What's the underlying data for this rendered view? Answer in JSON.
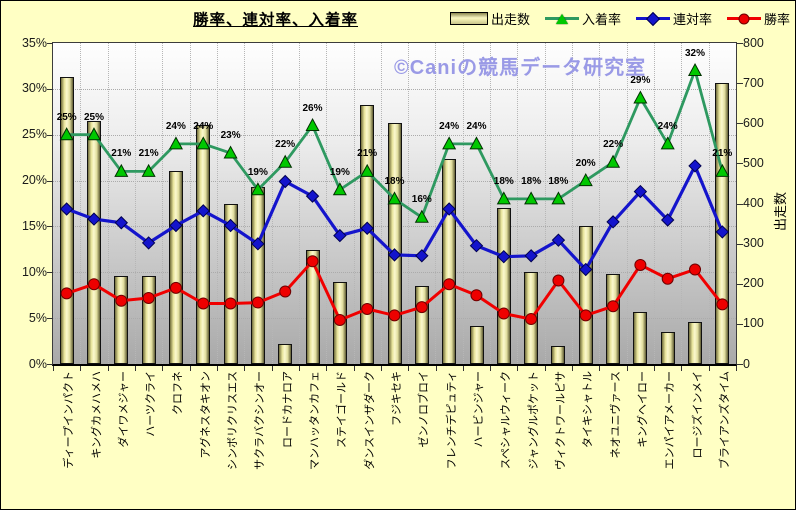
{
  "title": "勝率、連対率、入着率",
  "watermark": "©Caniの競馬データ研究室",
  "legend": [
    {
      "label": "出走数",
      "type": "bar",
      "color": "#F2EFA8"
    },
    {
      "label": "入着率",
      "type": "triangle",
      "color": "#00C800"
    },
    {
      "label": "連対率",
      "type": "diamond",
      "color": "#1414CC"
    },
    {
      "label": "勝率",
      "type": "circle",
      "color": "#EE0000"
    }
  ],
  "chart_data": {
    "type": "bar",
    "subtype": "combo-bar-and-lines",
    "title": "勝率、連対率、入着率",
    "grid": true,
    "legend_position": "top-right",
    "categories": [
      "ディープインパクト",
      "キングカメハメハ",
      "ダイワメジャー",
      "ハーツクライ",
      "クロフネ",
      "アグネスタキオン",
      "シンボリクリスエス",
      "サクラバクシンオー",
      "ロードカナロア",
      "マンハッタンカフェ",
      "ステイゴールド",
      "ダンスインザダーク",
      "フジキセキ",
      "ゼンノロブロイ",
      "フレンチデピュティ",
      "ハービンジャー",
      "スペシャルウィーク",
      "ジャングルポケット",
      "ヴィクトワールピサ",
      "タイキシャトル",
      "ネオユニヴァース",
      "キングヘイロー",
      "エンパイアメーカー",
      "ロージズインメイ",
      "ブライアンズタイム"
    ],
    "series": [
      {
        "name": "出走数",
        "type": "bar",
        "axis": "right",
        "values": [
          715,
          605,
          220,
          220,
          480,
          595,
          400,
          440,
          50,
          285,
          205,
          645,
          600,
          195,
          510,
          95,
          390,
          230,
          45,
          345,
          225,
          130,
          80,
          105,
          700
        ]
      },
      {
        "name": "入着率",
        "type": "line",
        "marker": "triangle",
        "axis": "left",
        "line_color": "#2E9960",
        "marker_color": "#00C800",
        "labels_shown": true,
        "values": [
          25,
          25,
          21,
          21,
          24,
          24,
          23,
          19,
          22,
          26,
          19,
          21,
          18,
          16,
          24,
          24,
          18,
          18,
          18,
          20,
          22,
          29,
          24,
          32,
          21
        ],
        "value_labels": [
          "25%",
          "25%",
          "21%",
          "21%",
          "24%",
          "24%",
          "23%",
          "19%",
          "22%",
          "26%",
          "19%",
          "21%",
          "18%",
          "16%",
          "24%",
          "24%",
          "18%",
          "18%",
          "18%",
          "20%",
          "22%",
          "29%",
          "24%",
          "32%",
          "21%"
        ]
      },
      {
        "name": "連対率",
        "type": "line",
        "marker": "diamond",
        "axis": "left",
        "line_color": "#1414CC",
        "marker_color": "#1414CC",
        "labels_shown": false,
        "values": [
          16.9,
          15.8,
          15.4,
          13.2,
          15.1,
          16.7,
          15.1,
          13.1,
          19.9,
          18.3,
          14.0,
          14.8,
          11.9,
          11.8,
          16.9,
          12.9,
          11.7,
          11.8,
          13.5,
          10.3,
          15.5,
          18.8,
          15.7,
          21.6,
          14.4
        ]
      },
      {
        "name": "勝率",
        "type": "line",
        "marker": "circle",
        "axis": "left",
        "line_color": "#F00000",
        "marker_color": "#EE0000",
        "labels_shown": false,
        "values": [
          7.7,
          8.7,
          6.9,
          7.2,
          8.3,
          6.6,
          6.6,
          6.7,
          7.9,
          11.2,
          4.8,
          6.0,
          5.3,
          6.2,
          8.7,
          7.5,
          5.5,
          4.9,
          9.1,
          5.3,
          6.3,
          10.8,
          9.3,
          10.3,
          6.5
        ]
      }
    ],
    "left_axis": {
      "min": 0,
      "max": 35,
      "step": 5,
      "format": "percent",
      "tick_labels": [
        "0%",
        "5%",
        "10%",
        "15%",
        "20%",
        "25%",
        "30%",
        "35%"
      ]
    },
    "right_axis": {
      "min": 0,
      "max": 800,
      "step": 100,
      "title": "出走数",
      "tick_labels": [
        "0",
        "100",
        "200",
        "300",
        "400",
        "500",
        "600",
        "700",
        "800"
      ]
    }
  }
}
